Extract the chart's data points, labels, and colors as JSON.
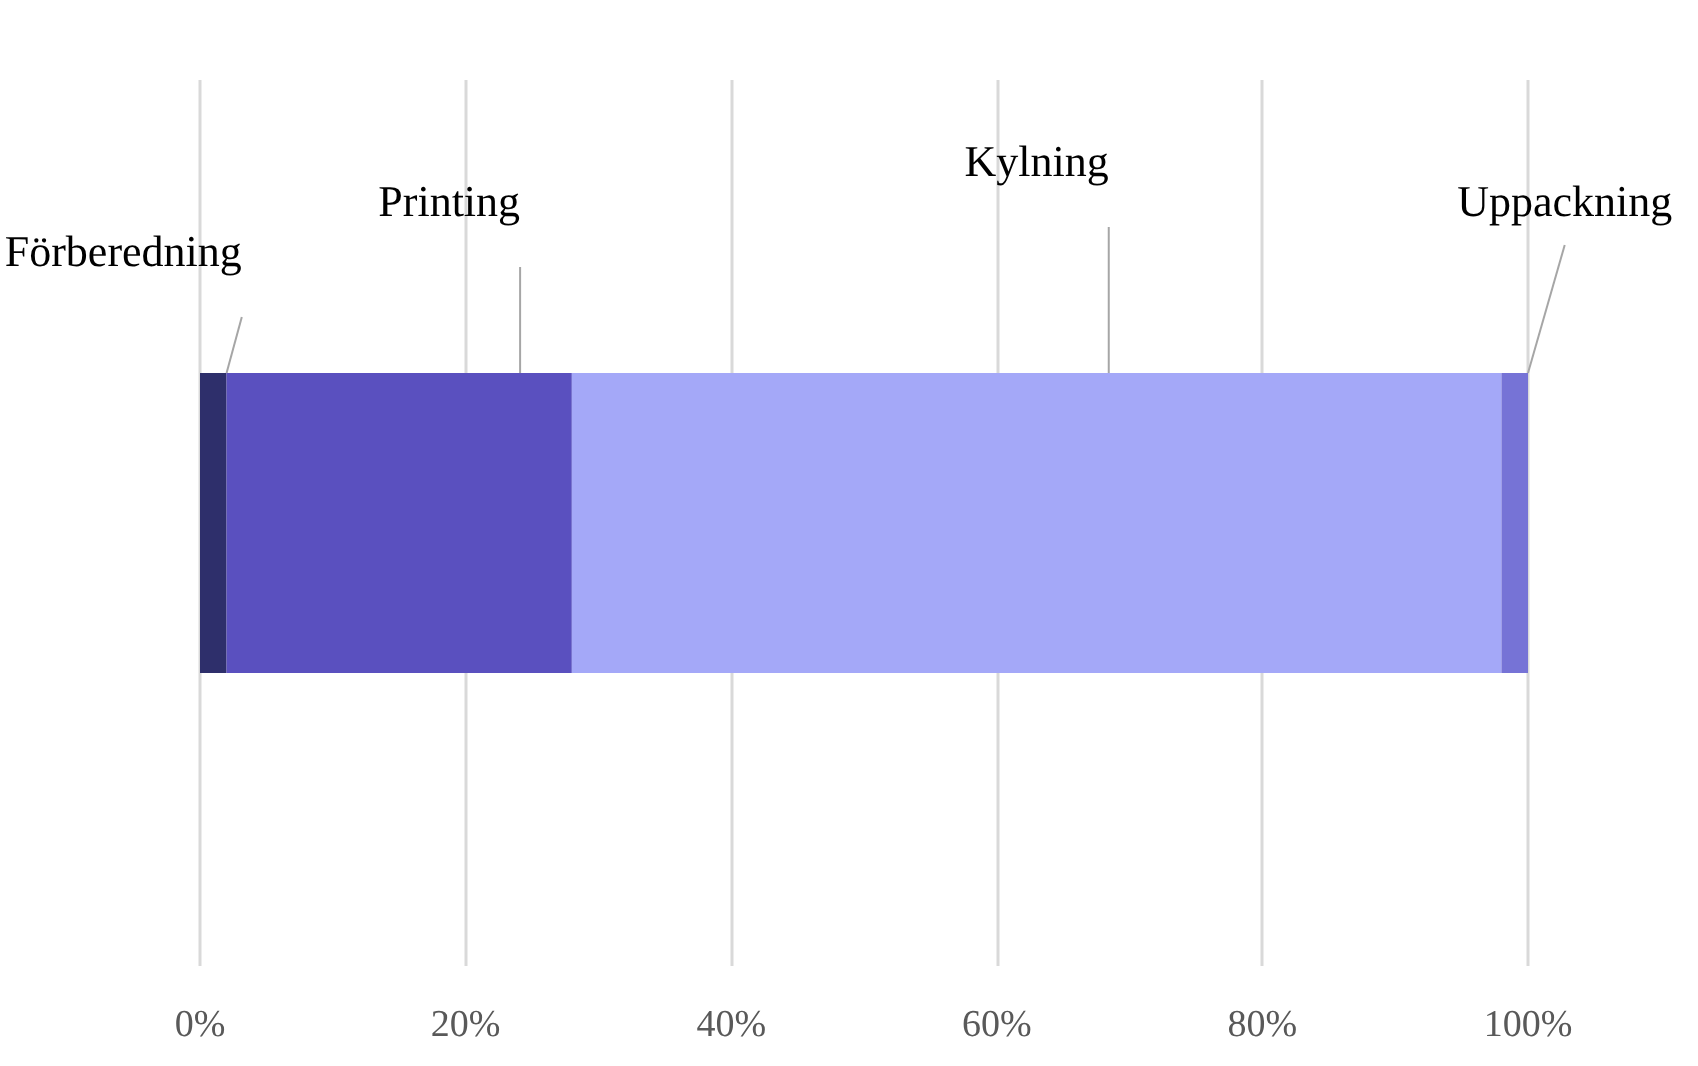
{
  "chart_data": {
    "type": "bar",
    "orientation": "horizontal",
    "stacked": true,
    "categories": [
      null
    ],
    "series": [
      {
        "name": "Förberedning",
        "color": "#2e2f6b",
        "values": [
          2
        ]
      },
      {
        "name": "Printing",
        "color": "#5a50bf",
        "values": [
          26
        ]
      },
      {
        "name": "Kylning",
        "color": "#a4a8f8",
        "values": [
          70
        ]
      },
      {
        "name": "Uppackning",
        "color": "#7673d6",
        "values": [
          2
        ]
      }
    ],
    "xlim": [
      0,
      100
    ],
    "xticks": [
      {
        "value": 0,
        "label": "0%"
      },
      {
        "value": 20,
        "label": "20%"
      },
      {
        "value": 40,
        "label": "40%"
      },
      {
        "value": 60,
        "label": "60%"
      },
      {
        "value": 80,
        "label": "80%"
      },
      {
        "value": 100,
        "label": "100%"
      }
    ],
    "grid": "x",
    "legend": false
  }
}
